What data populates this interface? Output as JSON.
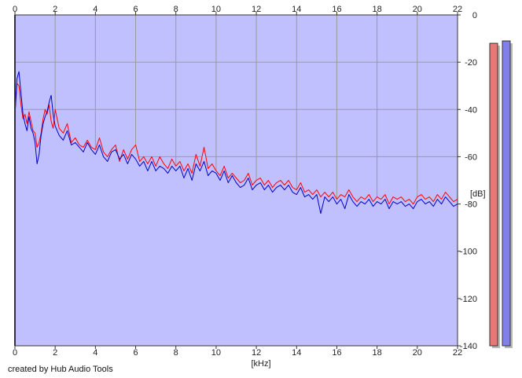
{
  "chart_data": {
    "type": "area",
    "xlabel": "[kHz]",
    "ylabel": "[dB]",
    "credit": "created by Hub Audio Tools",
    "xlim": [
      0,
      22
    ],
    "ylim": [
      -140,
      0
    ],
    "x_ticks": [
      "0",
      "2",
      "4",
      "6",
      "8",
      "10",
      "12",
      "14",
      "16",
      "18",
      "20",
      "22"
    ],
    "y_ticks": [
      "0",
      "-20",
      "-40",
      "-60",
      "-80",
      "-100",
      "-120",
      "-140"
    ],
    "grid": true,
    "series": [
      {
        "color": "#ff0000",
        "points": [
          [
            0.0,
            -42
          ],
          [
            0.1,
            -29
          ],
          [
            0.2,
            -30
          ],
          [
            0.3,
            -38
          ],
          [
            0.4,
            -44
          ],
          [
            0.5,
            -42
          ],
          [
            0.6,
            -46
          ],
          [
            0.7,
            -41
          ],
          [
            0.8,
            -45
          ],
          [
            0.9,
            -49
          ],
          [
            1.0,
            -50
          ],
          [
            1.1,
            -56
          ],
          [
            1.2,
            -54
          ],
          [
            1.3,
            -50
          ],
          [
            1.4,
            -44
          ],
          [
            1.5,
            -40
          ],
          [
            1.6,
            -42
          ],
          [
            1.7,
            -38
          ],
          [
            1.8,
            -45
          ],
          [
            1.9,
            -48
          ],
          [
            2.0,
            -40
          ],
          [
            2.2,
            -48
          ],
          [
            2.4,
            -50
          ],
          [
            2.6,
            -46
          ],
          [
            2.8,
            -54
          ],
          [
            3.0,
            -52
          ],
          [
            3.2,
            -55
          ],
          [
            3.4,
            -56
          ],
          [
            3.6,
            -53
          ],
          [
            3.8,
            -56
          ],
          [
            4.0,
            -57
          ],
          [
            4.2,
            -52
          ],
          [
            4.4,
            -58
          ],
          [
            4.6,
            -60
          ],
          [
            4.8,
            -57
          ],
          [
            5.0,
            -55
          ],
          [
            5.2,
            -62
          ],
          [
            5.4,
            -57
          ],
          [
            5.6,
            -61
          ],
          [
            5.8,
            -57
          ],
          [
            6.0,
            -55
          ],
          [
            6.2,
            -62
          ],
          [
            6.4,
            -60
          ],
          [
            6.6,
            -63
          ],
          [
            6.8,
            -60
          ],
          [
            7.0,
            -64
          ],
          [
            7.2,
            -60
          ],
          [
            7.4,
            -63
          ],
          [
            7.6,
            -65
          ],
          [
            7.8,
            -61
          ],
          [
            8.0,
            -64
          ],
          [
            8.2,
            -62
          ],
          [
            8.4,
            -66
          ],
          [
            8.6,
            -63
          ],
          [
            8.8,
            -67
          ],
          [
            9.0,
            -59
          ],
          [
            9.2,
            -64
          ],
          [
            9.4,
            -56
          ],
          [
            9.6,
            -65
          ],
          [
            9.8,
            -63
          ],
          [
            10.0,
            -66
          ],
          [
            10.2,
            -68
          ],
          [
            10.4,
            -64
          ],
          [
            10.6,
            -69
          ],
          [
            10.8,
            -67
          ],
          [
            11.0,
            -69
          ],
          [
            11.2,
            -71
          ],
          [
            11.4,
            -70
          ],
          [
            11.6,
            -67
          ],
          [
            11.8,
            -72
          ],
          [
            12.0,
            -70
          ],
          [
            12.2,
            -69
          ],
          [
            12.4,
            -72
          ],
          [
            12.6,
            -70
          ],
          [
            12.8,
            -73
          ],
          [
            13.0,
            -71
          ],
          [
            13.2,
            -70
          ],
          [
            13.4,
            -72
          ],
          [
            13.6,
            -70
          ],
          [
            13.8,
            -73
          ],
          [
            14.0,
            -74
          ],
          [
            14.2,
            -71
          ],
          [
            14.4,
            -75
          ],
          [
            14.6,
            -74
          ],
          [
            14.8,
            -76
          ],
          [
            15.0,
            -74
          ],
          [
            15.2,
            -77
          ],
          [
            15.4,
            -75
          ],
          [
            15.6,
            -77
          ],
          [
            15.8,
            -75
          ],
          [
            16.0,
            -78
          ],
          [
            16.2,
            -76
          ],
          [
            16.4,
            -77
          ],
          [
            16.6,
            -74
          ],
          [
            16.8,
            -77
          ],
          [
            17.0,
            -79
          ],
          [
            17.2,
            -77
          ],
          [
            17.4,
            -78
          ],
          [
            17.6,
            -76
          ],
          [
            17.8,
            -79
          ],
          [
            18.0,
            -77
          ],
          [
            18.2,
            -78
          ],
          [
            18.4,
            -76
          ],
          [
            18.6,
            -80
          ],
          [
            18.8,
            -77
          ],
          [
            19.0,
            -78
          ],
          [
            19.2,
            -77
          ],
          [
            19.4,
            -79
          ],
          [
            19.6,
            -78
          ],
          [
            19.8,
            -80
          ],
          [
            20.0,
            -77
          ],
          [
            20.2,
            -76
          ],
          [
            20.4,
            -78
          ],
          [
            20.6,
            -77
          ],
          [
            20.8,
            -79
          ],
          [
            21.0,
            -76
          ],
          [
            21.2,
            -78
          ],
          [
            21.4,
            -75
          ],
          [
            21.6,
            -77
          ],
          [
            21.8,
            -79
          ],
          [
            22.0,
            -78
          ]
        ]
      },
      {
        "color": "#0000cc",
        "points": [
          [
            0.0,
            -43
          ],
          [
            0.1,
            -27
          ],
          [
            0.2,
            -24
          ],
          [
            0.3,
            -33
          ],
          [
            0.4,
            -42
          ],
          [
            0.5,
            -46
          ],
          [
            0.6,
            -49
          ],
          [
            0.7,
            -43
          ],
          [
            0.8,
            -48
          ],
          [
            0.9,
            -50
          ],
          [
            1.0,
            -54
          ],
          [
            1.1,
            -63
          ],
          [
            1.2,
            -59
          ],
          [
            1.3,
            -51
          ],
          [
            1.4,
            -46
          ],
          [
            1.5,
            -43
          ],
          [
            1.6,
            -41
          ],
          [
            1.7,
            -37
          ],
          [
            1.8,
            -34
          ],
          [
            1.9,
            -42
          ],
          [
            2.0,
            -47
          ],
          [
            2.2,
            -51
          ],
          [
            2.4,
            -53
          ],
          [
            2.6,
            -49
          ],
          [
            2.8,
            -55
          ],
          [
            3.0,
            -54
          ],
          [
            3.2,
            -56
          ],
          [
            3.4,
            -58
          ],
          [
            3.6,
            -54
          ],
          [
            3.8,
            -57
          ],
          [
            4.0,
            -59
          ],
          [
            4.2,
            -55
          ],
          [
            4.4,
            -60
          ],
          [
            4.6,
            -62
          ],
          [
            4.8,
            -58
          ],
          [
            5.0,
            -57
          ],
          [
            5.2,
            -61
          ],
          [
            5.4,
            -59
          ],
          [
            5.6,
            -63
          ],
          [
            5.8,
            -59
          ],
          [
            6.0,
            -61
          ],
          [
            6.2,
            -64
          ],
          [
            6.4,
            -62
          ],
          [
            6.6,
            -66
          ],
          [
            6.8,
            -62
          ],
          [
            7.0,
            -66
          ],
          [
            7.2,
            -64
          ],
          [
            7.4,
            -65
          ],
          [
            7.6,
            -67
          ],
          [
            7.8,
            -64
          ],
          [
            8.0,
            -66
          ],
          [
            8.2,
            -64
          ],
          [
            8.4,
            -69
          ],
          [
            8.6,
            -65
          ],
          [
            8.8,
            -70
          ],
          [
            9.0,
            -63
          ],
          [
            9.2,
            -66
          ],
          [
            9.4,
            -62
          ],
          [
            9.6,
            -68
          ],
          [
            9.8,
            -66
          ],
          [
            10.0,
            -67
          ],
          [
            10.2,
            -70
          ],
          [
            10.4,
            -66
          ],
          [
            10.6,
            -71
          ],
          [
            10.8,
            -68
          ],
          [
            11.0,
            -71
          ],
          [
            11.2,
            -73
          ],
          [
            11.4,
            -72
          ],
          [
            11.6,
            -69
          ],
          [
            11.8,
            -74
          ],
          [
            12.0,
            -72
          ],
          [
            12.2,
            -71
          ],
          [
            12.4,
            -74
          ],
          [
            12.6,
            -72
          ],
          [
            12.8,
            -75
          ],
          [
            13.0,
            -73
          ],
          [
            13.2,
            -72
          ],
          [
            13.4,
            -74
          ],
          [
            13.6,
            -72
          ],
          [
            13.8,
            -75
          ],
          [
            14.0,
            -76
          ],
          [
            14.2,
            -73
          ],
          [
            14.4,
            -77
          ],
          [
            14.6,
            -76
          ],
          [
            14.8,
            -78
          ],
          [
            15.0,
            -76
          ],
          [
            15.2,
            -84
          ],
          [
            15.4,
            -77
          ],
          [
            15.6,
            -79
          ],
          [
            15.8,
            -77
          ],
          [
            16.0,
            -80
          ],
          [
            16.2,
            -78
          ],
          [
            16.4,
            -82
          ],
          [
            16.6,
            -76
          ],
          [
            16.8,
            -79
          ],
          [
            17.0,
            -81
          ],
          [
            17.2,
            -79
          ],
          [
            17.4,
            -80
          ],
          [
            17.6,
            -78
          ],
          [
            17.8,
            -81
          ],
          [
            18.0,
            -79
          ],
          [
            18.2,
            -80
          ],
          [
            18.4,
            -78
          ],
          [
            18.6,
            -82
          ],
          [
            18.8,
            -79
          ],
          [
            19.0,
            -80
          ],
          [
            19.2,
            -79
          ],
          [
            19.4,
            -81
          ],
          [
            19.6,
            -80
          ],
          [
            19.8,
            -82
          ],
          [
            20.0,
            -79
          ],
          [
            20.2,
            -78
          ],
          [
            20.4,
            -80
          ],
          [
            20.6,
            -79
          ],
          [
            20.8,
            -81
          ],
          [
            21.0,
            -78
          ],
          [
            21.2,
            -80
          ],
          [
            21.4,
            -77
          ],
          [
            21.6,
            -79
          ],
          [
            21.8,
            -81
          ],
          [
            22.0,
            -80
          ]
        ]
      }
    ],
    "level_meters": [
      {
        "color": "#e87878",
        "value_db": -12
      },
      {
        "color": "#8080e8",
        "value_db": -11
      }
    ],
    "colors": {
      "fill": "#c0c0ff",
      "plot_background": "#c0c0ff",
      "grid": "#9a9a9a",
      "axis": "#333333"
    }
  }
}
